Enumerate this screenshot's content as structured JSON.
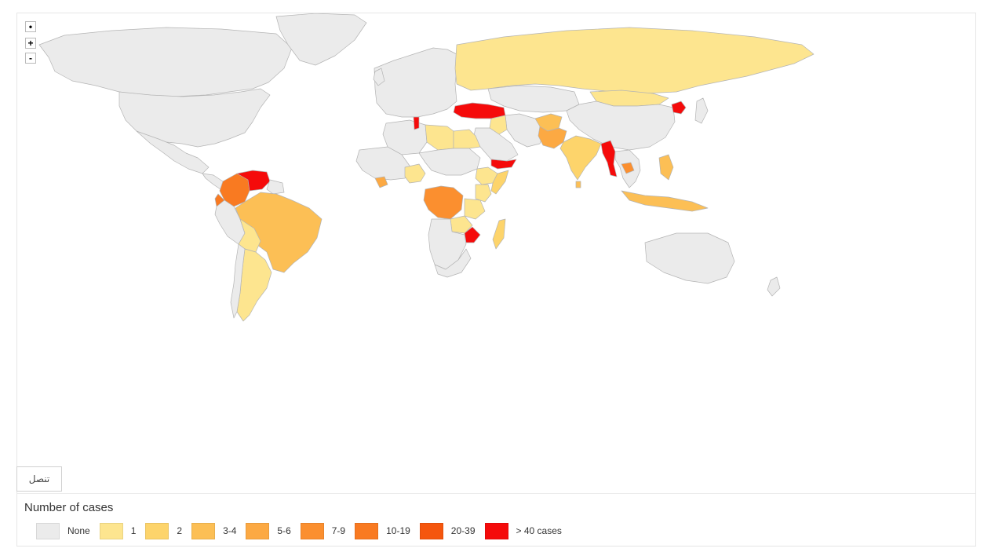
{
  "map": {
    "zoom_controls": {
      "reset": "•",
      "zoom_in": "+",
      "zoom_out": "-"
    },
    "connect_button": "تنصل",
    "none_color": "#ebebeb",
    "border_color": "#b4b4b4",
    "countries": [
      {
        "name": "Canada",
        "category": "None"
      },
      {
        "name": "United States",
        "category": "None"
      },
      {
        "name": "Mexico",
        "category": "None"
      },
      {
        "name": "Greenland",
        "category": "None"
      },
      {
        "name": "Colombia",
        "category": "10-19"
      },
      {
        "name": "Venezuela",
        "category": "> 40 cases"
      },
      {
        "name": "Brazil",
        "category": "3-4"
      },
      {
        "name": "Peru",
        "category": "None"
      },
      {
        "name": "Bolivia",
        "category": "1"
      },
      {
        "name": "Argentina",
        "category": "1"
      },
      {
        "name": "Chile",
        "category": "None"
      },
      {
        "name": "Ecuador",
        "category": "10-19"
      },
      {
        "name": "Russia",
        "category": "1"
      },
      {
        "name": "Turkey",
        "category": "> 40 cases"
      },
      {
        "name": "Tunisia",
        "category": "> 40 cases"
      },
      {
        "name": "Libya",
        "category": "1"
      },
      {
        "name": "Egypt",
        "category": "1"
      },
      {
        "name": "Iraq",
        "category": "1"
      },
      {
        "name": "Yemen",
        "category": "> 40 cases"
      },
      {
        "name": "Pakistan",
        "category": "5-6"
      },
      {
        "name": "Afghanistan",
        "category": "3-4"
      },
      {
        "name": "India",
        "category": "2"
      },
      {
        "name": "Sri Lanka",
        "category": "3-4"
      },
      {
        "name": "Myanmar",
        "category": "> 40 cases"
      },
      {
        "name": "Cambodia",
        "category": "7-9"
      },
      {
        "name": "North Korea",
        "category": "> 40 cases"
      },
      {
        "name": "Philippines",
        "category": "3-4"
      },
      {
        "name": "Indonesia",
        "category": "3-4"
      },
      {
        "name": "DR Congo",
        "category": "7-9"
      },
      {
        "name": "Nigeria",
        "category": "1"
      },
      {
        "name": "Cote d'Ivoire",
        "category": "5-6"
      },
      {
        "name": "Ethiopia",
        "category": "1"
      },
      {
        "name": "Somalia",
        "category": "2"
      },
      {
        "name": "Kenya",
        "category": "1"
      },
      {
        "name": "Tanzania",
        "category": "1"
      },
      {
        "name": "Zambia",
        "category": "1"
      },
      {
        "name": "Zimbabwe",
        "category": "> 40 cases"
      },
      {
        "name": "Madagascar",
        "category": "2"
      },
      {
        "name": "Australia",
        "category": "None"
      },
      {
        "name": "China",
        "category": "None"
      },
      {
        "name": "Kazakhstan",
        "category": "None"
      },
      {
        "name": "Mongolia",
        "category": "1"
      },
      {
        "name": "Europe",
        "category": "None"
      },
      {
        "name": "Saudi Arabia",
        "category": "None"
      },
      {
        "name": "Iran",
        "category": "None"
      },
      {
        "name": "South Africa",
        "category": "None"
      },
      {
        "name": "Algeria",
        "category": "None"
      }
    ]
  },
  "legend": {
    "title": "Number of cases",
    "items": [
      {
        "label": "None",
        "color": "#ebebeb"
      },
      {
        "label": "1",
        "color": "#fde58f"
      },
      {
        "label": "2",
        "color": "#fdd46b"
      },
      {
        "label": "3-4",
        "color": "#fcbf55"
      },
      {
        "label": "5-6",
        "color": "#fca943"
      },
      {
        "label": "7-9",
        "color": "#fb8f2f"
      },
      {
        "label": "10-19",
        "color": "#f97a21"
      },
      {
        "label": "20-39",
        "color": "#f5560e"
      },
      {
        "label": "> 40 cases",
        "color": "#f50b0b"
      }
    ]
  }
}
